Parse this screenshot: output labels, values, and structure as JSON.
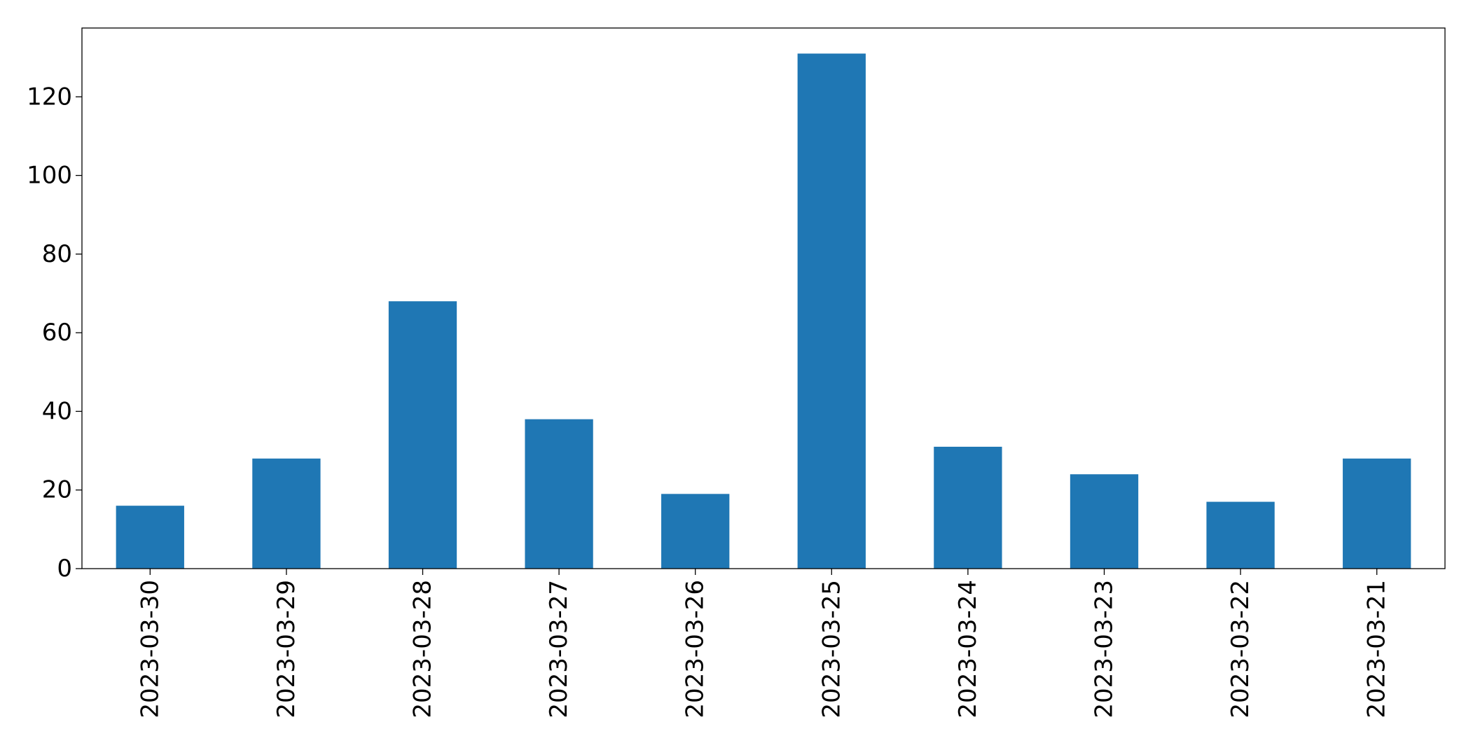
{
  "chart_data": {
    "type": "bar",
    "categories": [
      "2023-03-30",
      "2023-03-29",
      "2023-03-28",
      "2023-03-27",
      "2023-03-26",
      "2023-03-25",
      "2023-03-24",
      "2023-03-23",
      "2023-03-22",
      "2023-03-21"
    ],
    "values": [
      16,
      28,
      68,
      38,
      19,
      131,
      31,
      24,
      17,
      28
    ],
    "title": "",
    "xlabel": "",
    "ylabel": "",
    "ylim": [
      0,
      137.5
    ],
    "yticks": [
      0,
      20,
      40,
      60,
      80,
      100,
      120
    ],
    "bar_color": "#1f77b4",
    "grid": false,
    "legend": "none"
  }
}
